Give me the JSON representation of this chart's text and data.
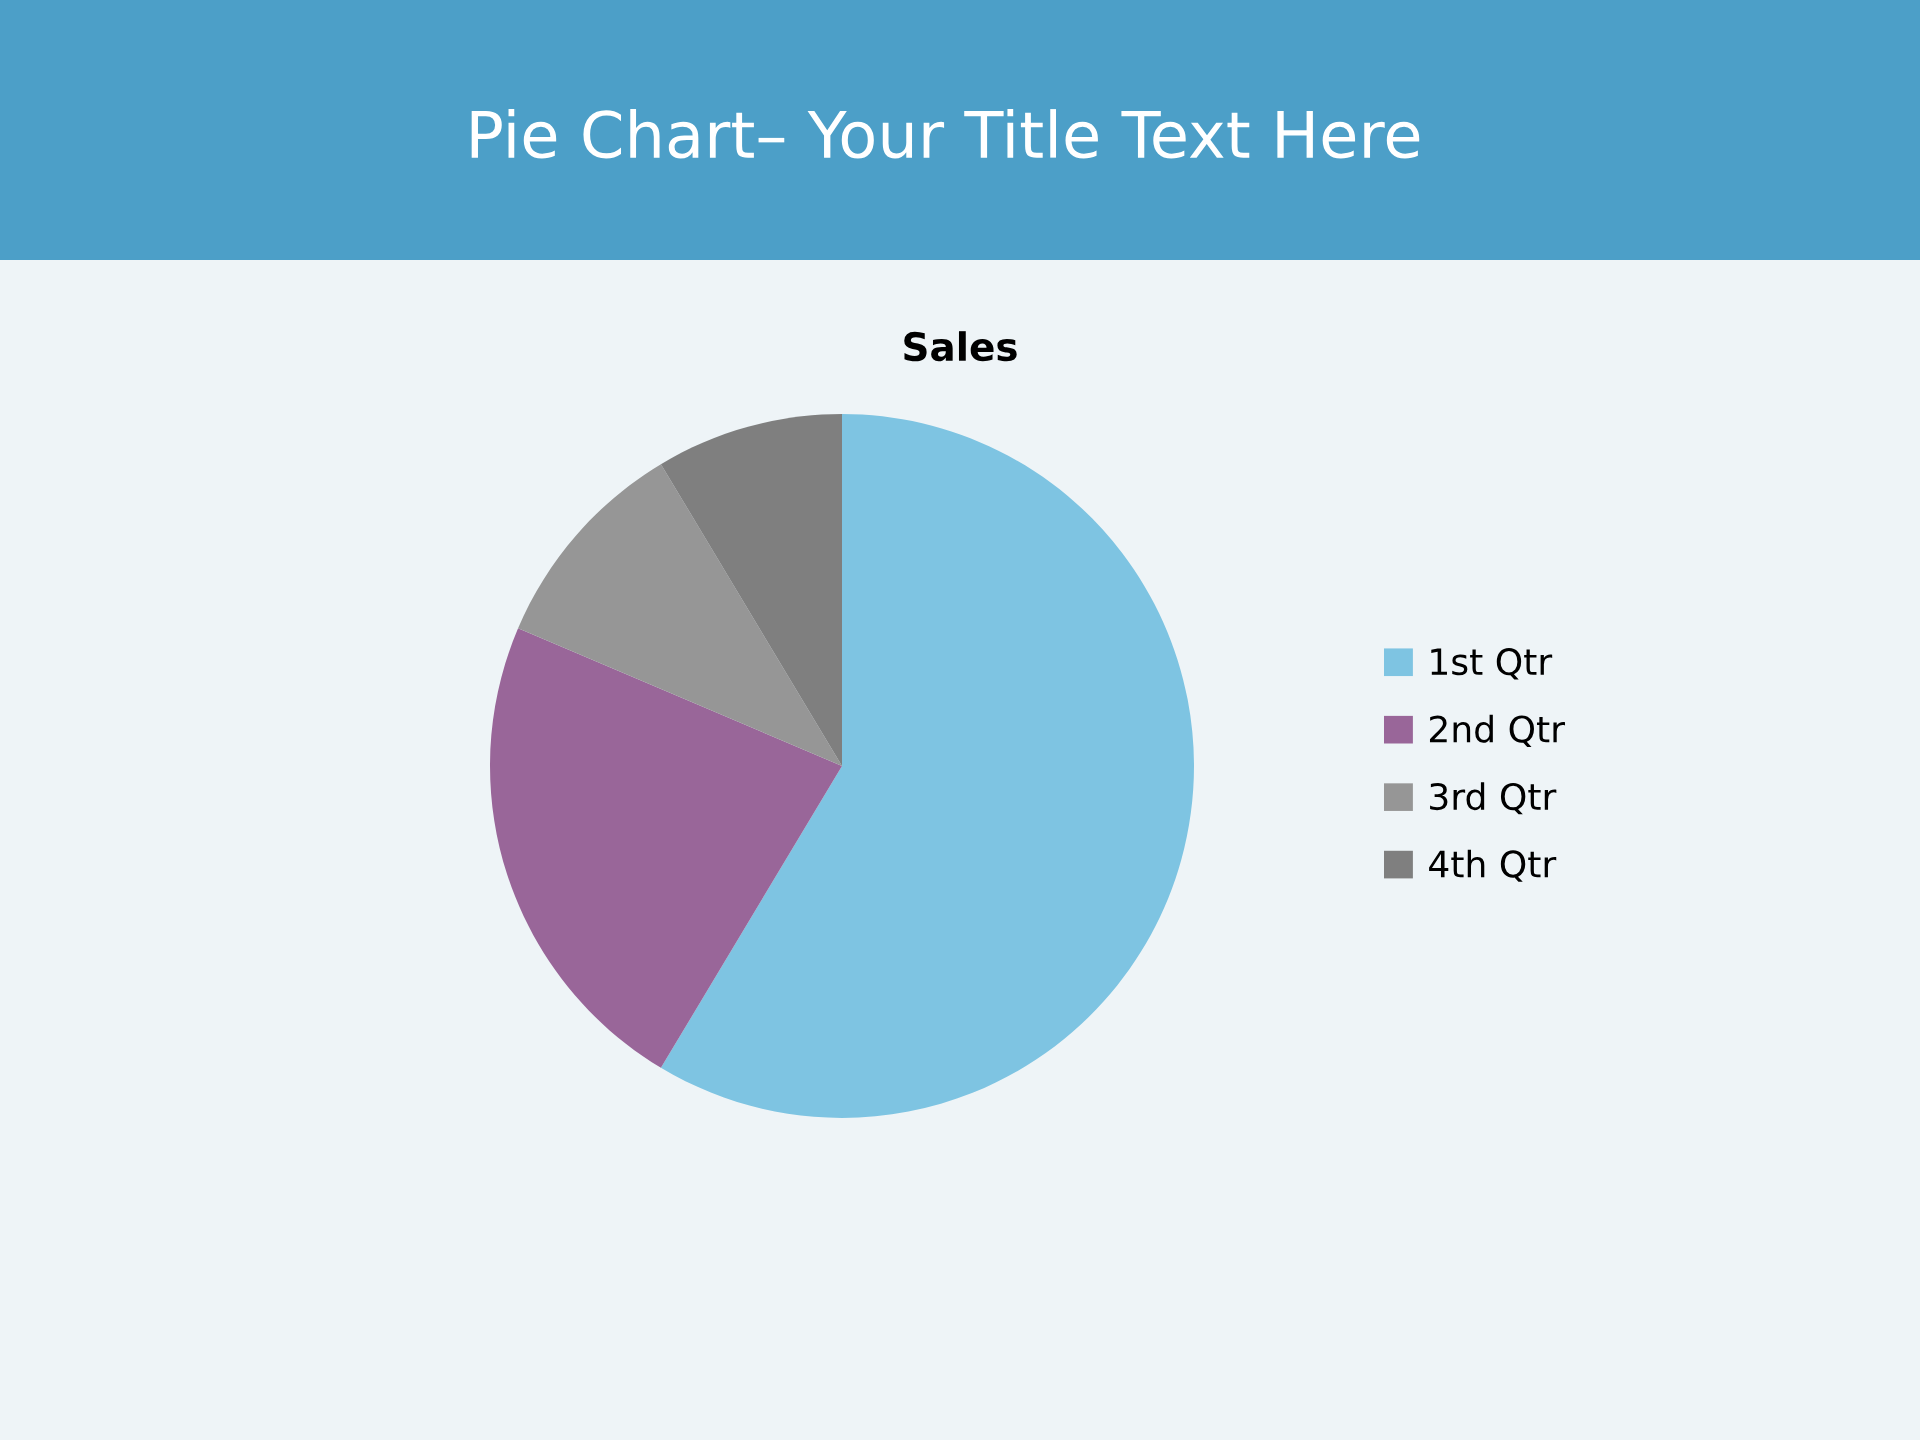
{
  "chart_data": {
    "type": "pie",
    "title": "Pie Chart– Your Title Text Here",
    "subtitle": "Sales",
    "categories": [
      "1st Qtr",
      "2nd Qtr",
      "3rd Qtr",
      "4th Qtr"
    ],
    "values": [
      58.6,
      22.8,
      10.0,
      8.6
    ],
    "colors": [
      "#7ec4e2",
      "#996699",
      "#969696",
      "#7f7f7f"
    ],
    "legend": "right"
  }
}
